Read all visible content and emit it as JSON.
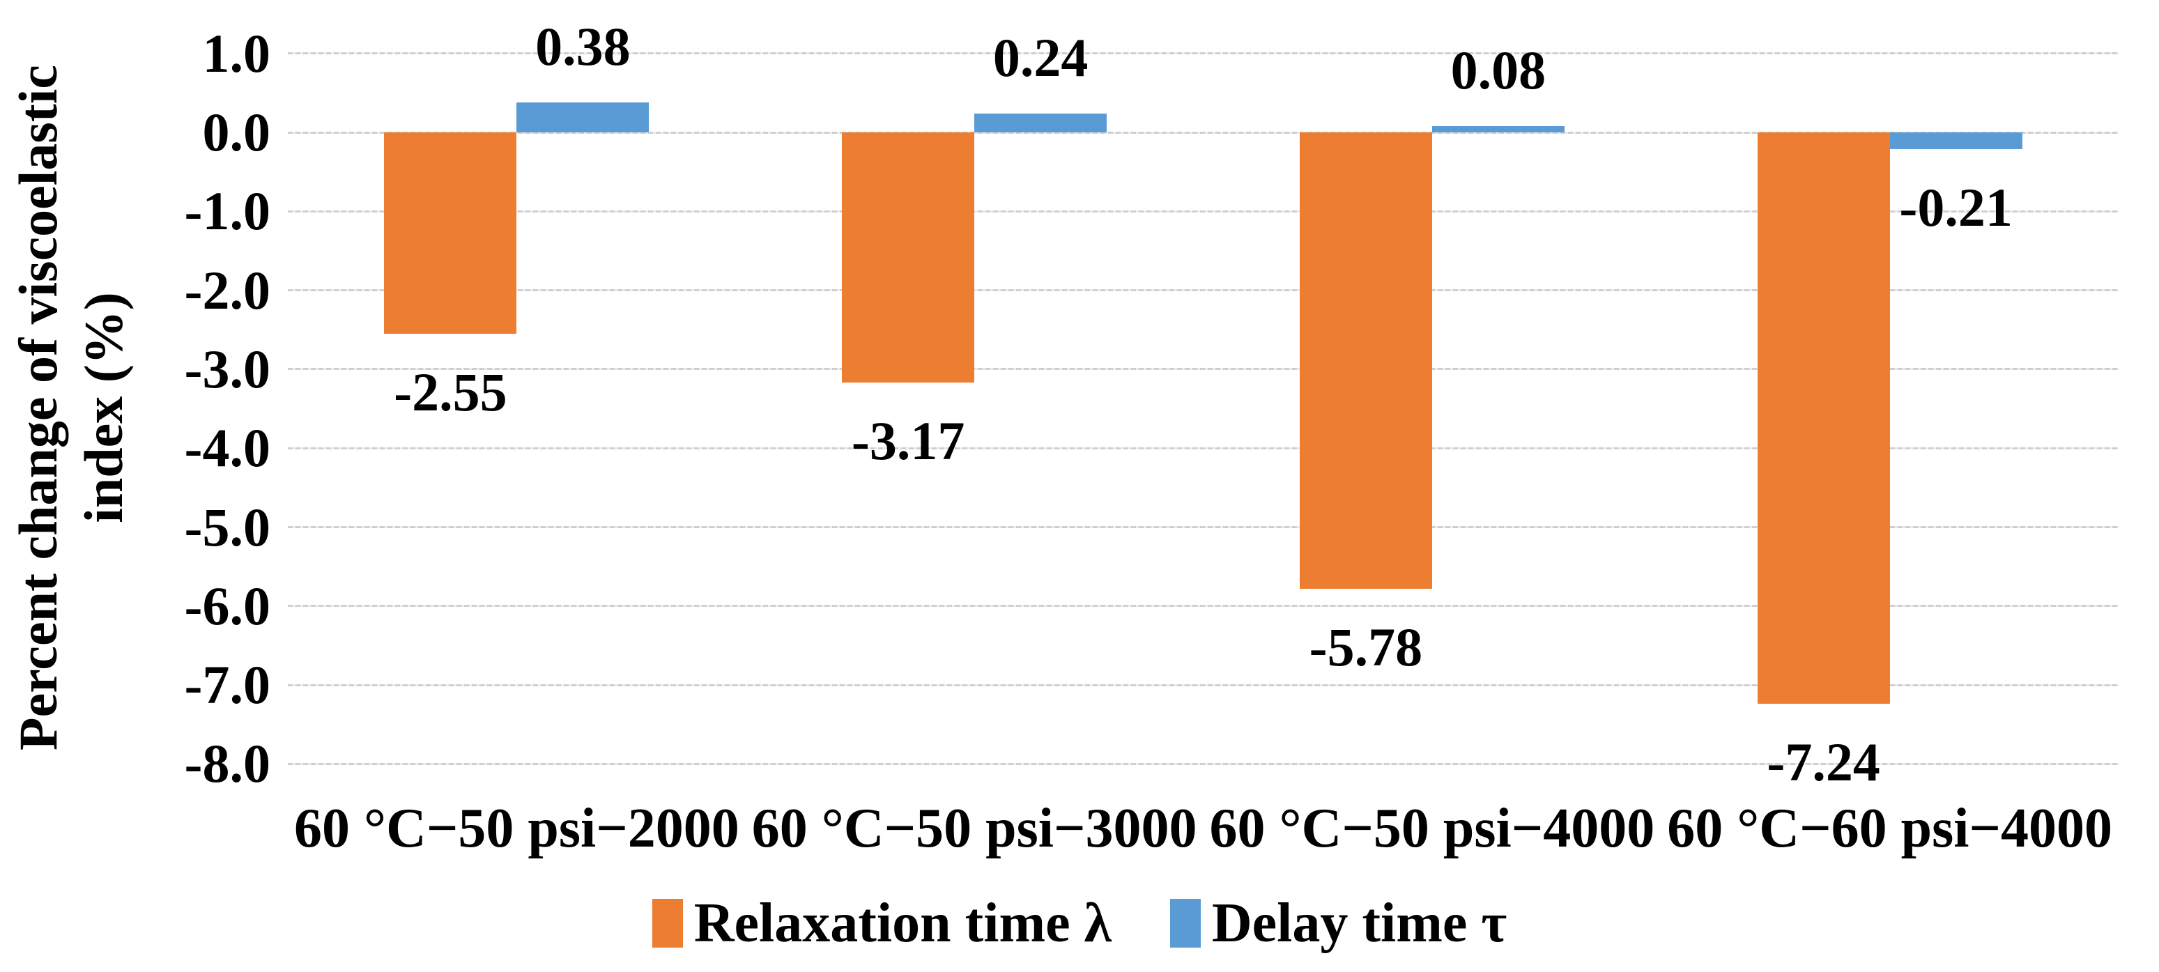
{
  "chart_data": {
    "type": "bar",
    "title": "",
    "xlabel": "",
    "ylabel": "Percent change of viscoelastic\nindex (%)",
    "categories": [
      "60 °C−50 psi−2000",
      "60 °C−50 psi−3000",
      "60 °C−50 psi−4000",
      "60 °C−60 psi−4000"
    ],
    "series": [
      {
        "name": "Relaxation time λ",
        "color": "#ED7D31",
        "values": [
          -2.55,
          -3.17,
          -5.78,
          -7.24
        ],
        "labels": [
          "-2.55",
          "-3.17",
          "-5.78",
          "-7.24"
        ]
      },
      {
        "name": "Delay time τ",
        "color": "#5B9BD5",
        "values": [
          0.38,
          0.24,
          0.08,
          -0.21
        ],
        "labels": [
          "0.38",
          "0.24",
          "0.08",
          "-0.21"
        ]
      }
    ],
    "y_axis": {
      "min": -8.0,
      "max": 1.0,
      "step": 1.0,
      "tick_labels": [
        "1.0",
        "0.0",
        "-1.0",
        "-2.0",
        "-3.0",
        "-4.0",
        "-5.0",
        "-6.0",
        "-7.0",
        "-8.0"
      ]
    },
    "grid": true,
    "gridline_color": "#d3d3d3",
    "legend_position": "bottom",
    "data_label_color": "#000000"
  }
}
